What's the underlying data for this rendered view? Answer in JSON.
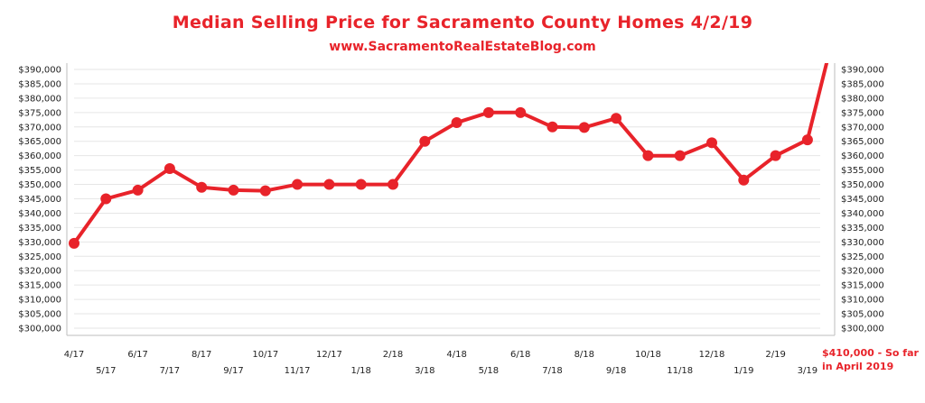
{
  "header": {
    "title": "Median Selling Price for Sacramento County Homes 4/2/19",
    "subtitle": "www.SacramentoRealEstateBlog.com"
  },
  "colors": {
    "accent": "#e8232a",
    "grid": "#e6e6e6",
    "axis": "#bdbdbd"
  },
  "annotation": {
    "line1": "$410,000 - So far",
    "line2": "in April 2019"
  },
  "chart_data": {
    "type": "line",
    "title": "Median Selling Price for Sacramento County Homes 4/2/19",
    "subtitle": "www.SacramentoRealEstateBlog.com",
    "xlabel": "",
    "ylabel": "",
    "grid": true,
    "ylim": [
      300000,
      390000
    ],
    "ytick_labels": [
      "$300,000",
      "$305,000",
      "$310,000",
      "$315,000",
      "$320,000",
      "$325,000",
      "$330,000",
      "$335,000",
      "$340,000",
      "$345,000",
      "$350,000",
      "$355,000",
      "$360,000",
      "$365,000",
      "$370,000",
      "$375,000",
      "$380,000",
      "$385,000",
      "$390,000"
    ],
    "categories": [
      "4/17",
      "5/17",
      "6/17",
      "7/17",
      "8/17",
      "9/17",
      "10/17",
      "11/17",
      "12/17",
      "1/18",
      "2/18",
      "3/18",
      "4/18",
      "5/18",
      "6/18",
      "7/18",
      "8/18",
      "9/18",
      "10/18",
      "11/18",
      "12/18",
      "1/19",
      "2/19",
      "3/19",
      "4/19"
    ],
    "x_tick_labels": [
      "4/17",
      "5/17",
      "6/17",
      "7/17",
      "8/17",
      "9/17",
      "10/17",
      "11/17",
      "12/17",
      "1/18",
      "2/18",
      "3/18",
      "4/18",
      "5/18",
      "6/18",
      "7/18",
      "8/18",
      "9/18",
      "10/18",
      "11/18",
      "12/18",
      "1/19",
      "2/19",
      "3/19"
    ],
    "values": [
      329500,
      345000,
      348000,
      355500,
      349000,
      348000,
      347800,
      350000,
      350000,
      350000,
      350000,
      365000,
      371500,
      375000,
      375000,
      370000,
      369800,
      373000,
      360000,
      360000,
      364500,
      351500,
      360000,
      365500,
      410000
    ],
    "markers_count": 24
  }
}
